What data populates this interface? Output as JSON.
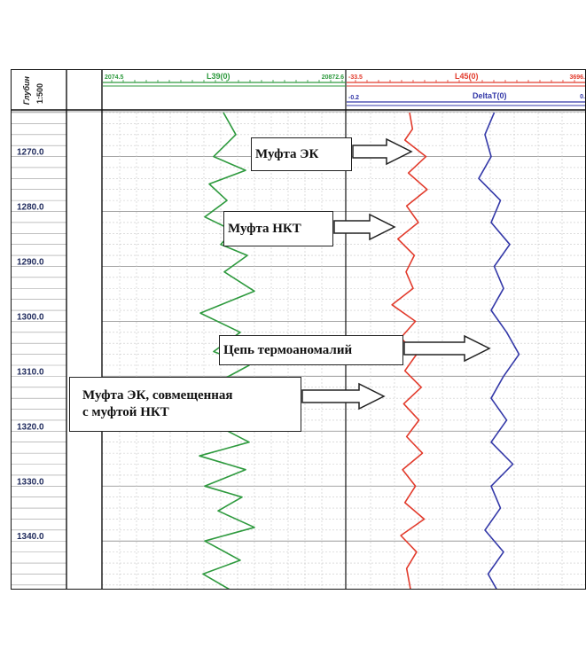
{
  "chart_data": {
    "type": "line",
    "depth_header": {
      "title": "Глубин",
      "scale": "1:500"
    },
    "depth_axis": {
      "range": [
        1262,
        1349
      ],
      "labels": [
        "1270.0",
        "1280.0",
        "1290.0",
        "1300.0",
        "1310.0",
        "1320.0",
        "1330.0",
        "1340.0"
      ],
      "label_values": [
        1270,
        1280,
        1290,
        1300,
        1310,
        1320,
        1330,
        1340
      ]
    },
    "tracks": [
      {
        "name": "L39(0)",
        "color": "#2e9a3e",
        "scale_min": "2074.5",
        "scale_max": "20872.6"
      },
      {
        "name": "L45(0)",
        "color": "#e23b2c",
        "scale_min": "-33.5",
        "scale_max": "3696."
      },
      {
        "name": "DeltaT(0)",
        "color": "#3338a8",
        "scale_min": "-0.2",
        "scale_max": "0."
      }
    ],
    "series": [
      {
        "name": "L39(0)",
        "color": "#2e9a3e",
        "depth": [
          1262,
          1266,
          1270,
          1272.5,
          1275,
          1278,
          1281,
          1283.5,
          1286,
          1288,
          1291,
          1294.5,
          1298.5,
          1302,
          1305.5,
          1308,
          1312,
          1316,
          1319,
          1322,
          1324.5,
          1327,
          1330,
          1332,
          1334.5,
          1337.5,
          1340,
          1343.5,
          1346,
          1349
        ],
        "values": [
          0.41,
          0.55,
          0.3,
          0.66,
          0.25,
          0.45,
          0.2,
          0.52,
          0.38,
          0.68,
          0.42,
          0.76,
          0.15,
          0.6,
          0.3,
          0.7,
          0.24,
          0.58,
          0.34,
          0.7,
          0.14,
          0.66,
          0.2,
          0.62,
          0.35,
          0.76,
          0.2,
          0.6,
          0.18,
          0.5
        ]
      },
      {
        "name": "L45(0)",
        "color": "#e23b2c",
        "depth": [
          1262,
          1265,
          1267,
          1270,
          1273,
          1276,
          1279,
          1282,
          1285,
          1288,
          1291,
          1294,
          1297,
          1300,
          1303,
          1306,
          1309,
          1312,
          1315,
          1318,
          1321,
          1324,
          1327,
          1330,
          1333,
          1336,
          1339,
          1342,
          1345,
          1349
        ],
        "values": [
          0.5,
          0.55,
          0.42,
          0.78,
          0.48,
          0.8,
          0.45,
          0.65,
          0.3,
          0.58,
          0.44,
          0.56,
          0.2,
          0.6,
          0.35,
          0.62,
          0.42,
          0.7,
          0.4,
          0.66,
          0.45,
          0.72,
          0.38,
          0.6,
          0.42,
          0.75,
          0.35,
          0.62,
          0.45,
          0.52
        ]
      },
      {
        "name": "DeltaT(0)",
        "color": "#3338a8",
        "depth": [
          1262,
          1266,
          1270,
          1274,
          1278,
          1282,
          1286,
          1290,
          1294,
          1298,
          1302,
          1306,
          1310,
          1314,
          1318,
          1322,
          1326,
          1330,
          1334,
          1338,
          1342,
          1346,
          1349
        ],
        "values": [
          0.35,
          0.2,
          0.3,
          0.1,
          0.45,
          0.3,
          0.6,
          0.35,
          0.5,
          0.3,
          0.55,
          0.75,
          0.5,
          0.3,
          0.55,
          0.3,
          0.65,
          0.3,
          0.45,
          0.2,
          0.5,
          0.25,
          0.4
        ]
      }
    ],
    "annotations": [
      {
        "text": "Муфта ЭК",
        "target_depth": 1272
      },
      {
        "text": "Муфта НКТ",
        "target_depth": 1285
      },
      {
        "text": "Цепь термоаномалий",
        "target_depth": 1306
      },
      {
        "text": "Муфта ЭК, совмещенная с муфтой НКТ",
        "lines": [
          "Муфта ЭК, совмещенная",
          "с муфтой НКТ"
        ],
        "target_depth": 1315
      }
    ],
    "grid": true
  }
}
